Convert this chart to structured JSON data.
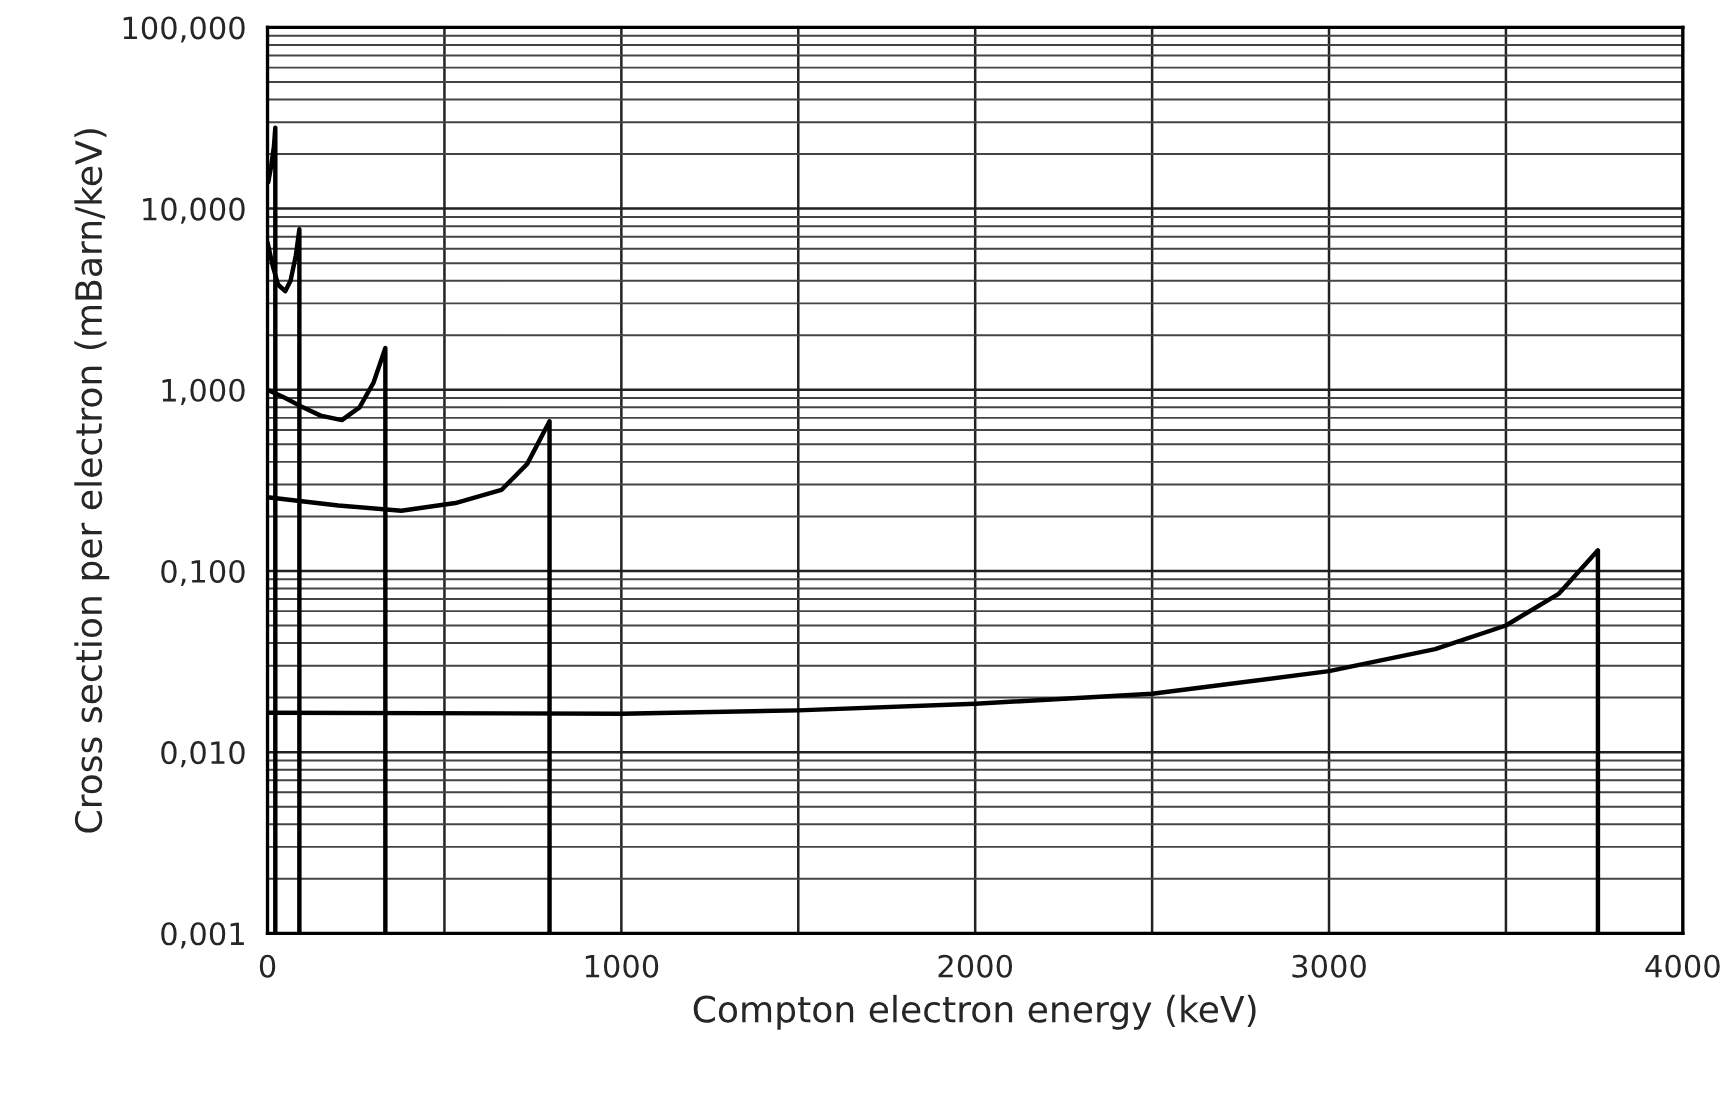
{
  "chart_data": {
    "type": "line",
    "xlabel": "Compton electron energy (keV)",
    "ylabel": "Cross section per electron (mBarn/keV)",
    "log": "y",
    "grid": true,
    "legend": false,
    "marker": "none",
    "line_style": "solid",
    "xlim": [
      0,
      4000
    ],
    "xticks": [
      0,
      {
        "value": 500,
        "label": null
      },
      1000,
      {
        "value": 1500,
        "label": null
      },
      2000,
      {
        "value": 2500,
        "label": null
      },
      3000,
      {
        "value": 3500,
        "label": null
      },
      4000
    ],
    "ylim": [
      0.001,
      100
    ],
    "yticks": [
      {
        "value": 0.001,
        "label": "0,001"
      },
      {
        "value": 0.01,
        "label": "0,010"
      },
      {
        "value": 0.1,
        "label": "0,100"
      },
      {
        "value": 1,
        "label": "1,000"
      },
      {
        "value": 10,
        "label": "10,000"
      },
      {
        "value": 100,
        "label": "100,000"
      }
    ],
    "series": [
      {
        "color": "#000000",
        "x": [
          2,
          10,
          18,
          22,
          22
        ],
        "values": [
          14,
          17,
          22,
          28,
          0.001
        ]
      },
      {
        "color": "#000000",
        "x": [
          0,
          15,
          30,
          50,
          65,
          80,
          90,
          90
        ],
        "values": [
          6.5,
          4.8,
          3.8,
          3.5,
          4,
          5.5,
          7.7,
          0.001
        ]
      },
      {
        "color": "#000000",
        "x": [
          0,
          50,
          100,
          150,
          210,
          260,
          300,
          333,
          333
        ],
        "values": [
          1.0,
          0.9,
          0.8,
          0.72,
          0.68,
          0.8,
          1.1,
          1.7,
          0.001
        ]
      },
      {
        "color": "#000000",
        "x": [
          0,
          200,
          378,
          531,
          661,
          734,
          797,
          797
        ],
        "values": [
          0.255,
          0.23,
          0.215,
          0.237,
          0.28,
          0.39,
          0.67,
          0.001
        ]
      },
      {
        "color": "#000000",
        "x": [
          0,
          1000,
          1500,
          2000,
          2500,
          3000,
          3300,
          3500,
          3650,
          3760,
          3760
        ],
        "values": [
          0.0165,
          0.0163,
          0.017,
          0.0185,
          0.021,
          0.028,
          0.037,
          0.05,
          0.075,
          0.13,
          0.001
        ]
      }
    ]
  }
}
